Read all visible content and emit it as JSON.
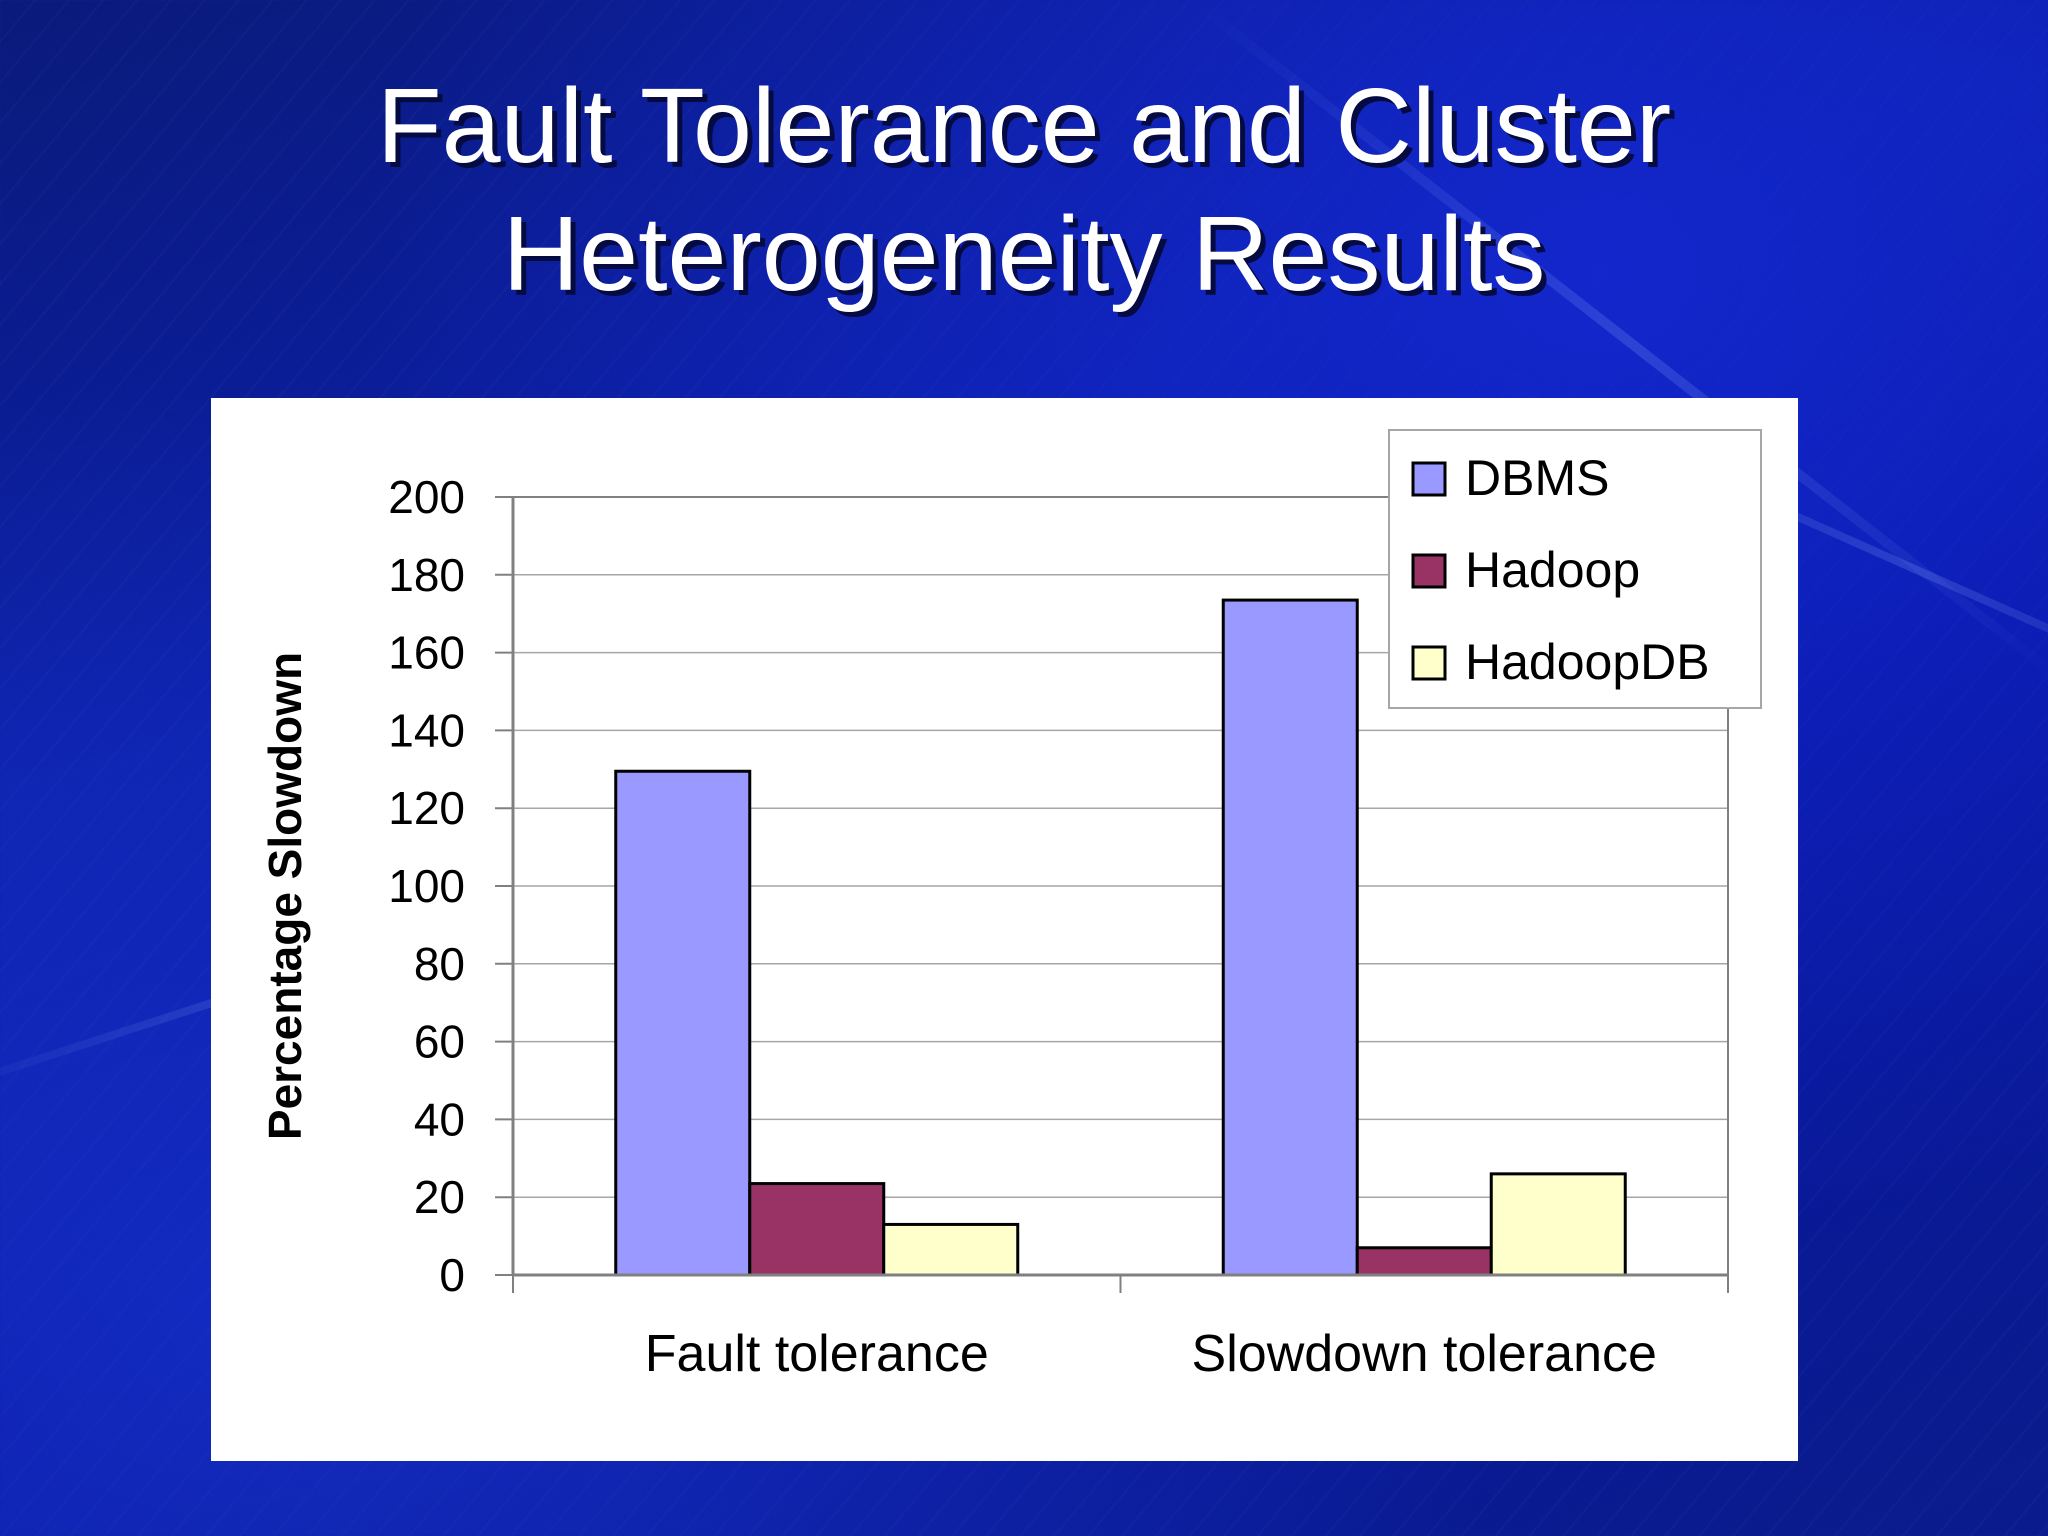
{
  "slide": {
    "title_lines": [
      "Fault Tolerance and Cluster",
      "Heterogeneity Results"
    ]
  },
  "colors": {
    "background": "#0b1fa8",
    "panel": "#ffffff",
    "dbms": "#9999ff",
    "hadoop": "#993366",
    "hadoopdb": "#ffffcc",
    "gridline": "#a6a6a6",
    "axis": "#808080"
  },
  "chart_data": {
    "type": "bar",
    "title": "",
    "xlabel": "",
    "ylabel": "Percentage Slowdown",
    "ylim": [
      0,
      200
    ],
    "yticks": [
      0,
      20,
      40,
      60,
      80,
      100,
      120,
      140,
      160,
      180,
      200
    ],
    "grid": true,
    "legend_position": "top-right",
    "categories": [
      "Fault tolerance",
      "Slowdown tolerance"
    ],
    "series": [
      {
        "name": "DBMS",
        "color": "#9999ff",
        "values": [
          129.5,
          173.5
        ]
      },
      {
        "name": "Hadoop",
        "color": "#993366",
        "values": [
          23.5,
          7
        ]
      },
      {
        "name": "HadoopDB",
        "color": "#ffffcc",
        "values": [
          13,
          26
        ]
      }
    ]
  }
}
